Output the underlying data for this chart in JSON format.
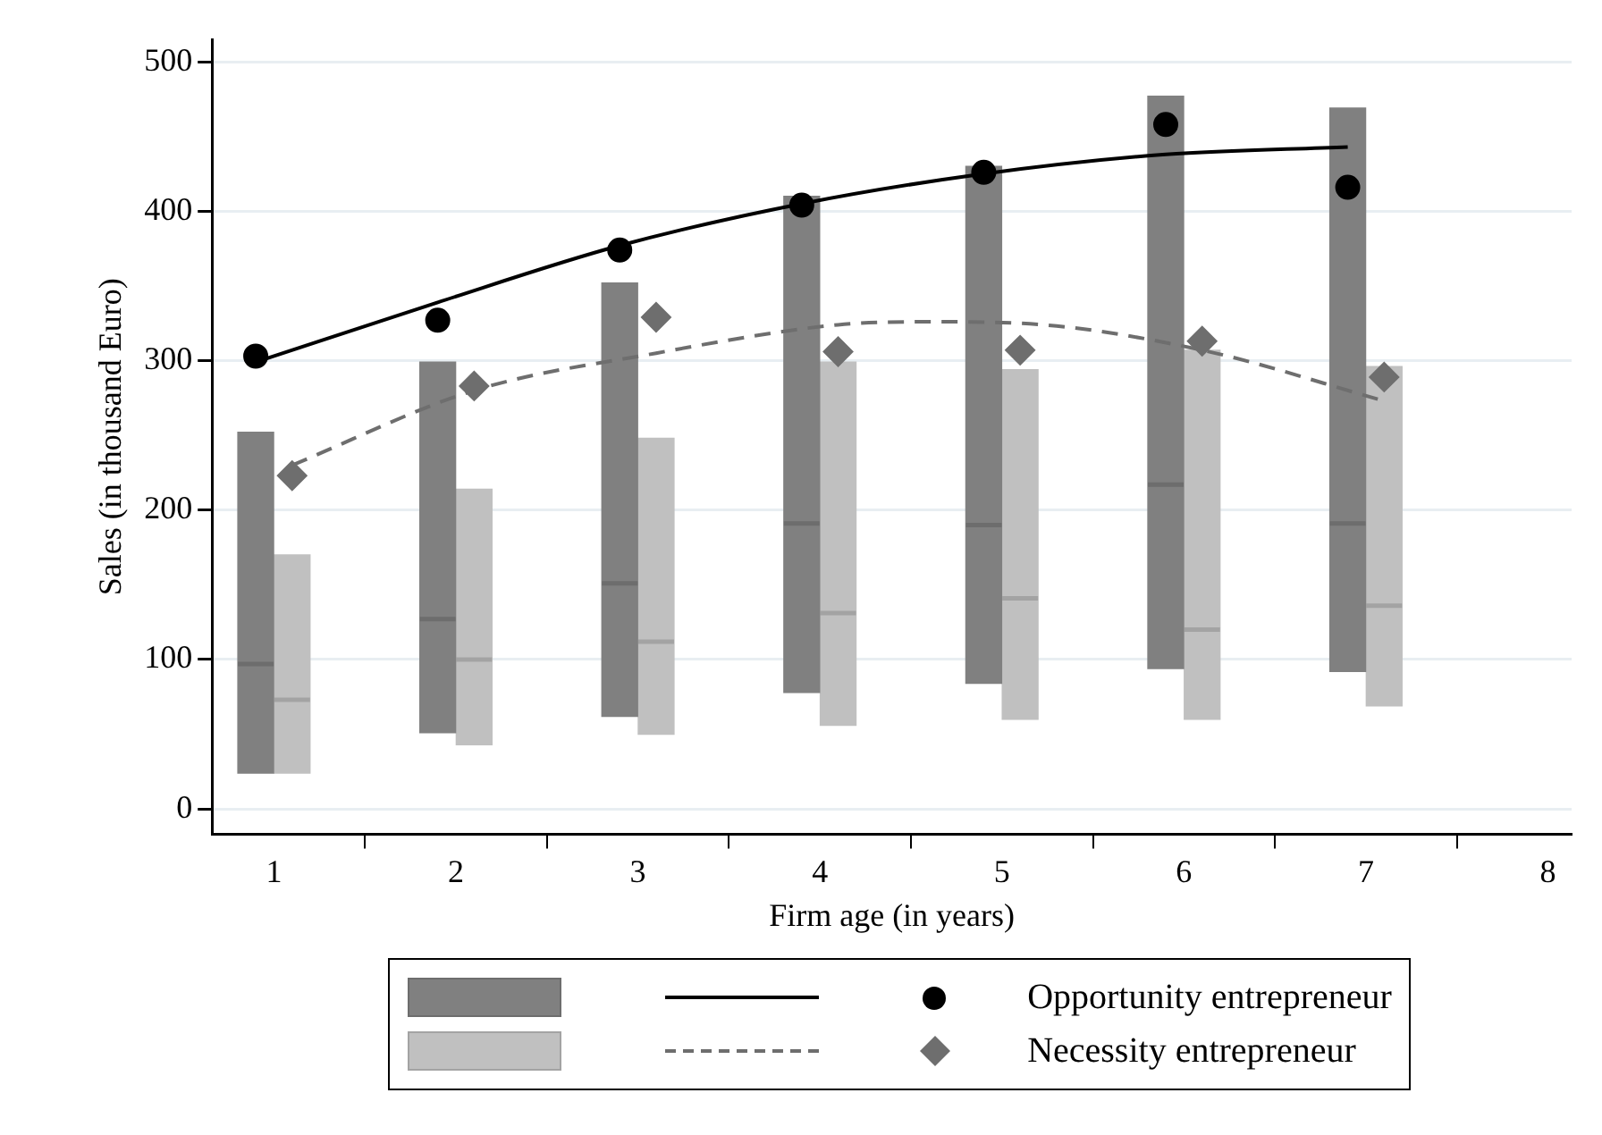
{
  "chart_data": {
    "type": "box",
    "xlabel": "Firm age (in years)",
    "ylabel": "Sales (in thousand Euro)",
    "xlim": [
      0.66,
      8.13
    ],
    "xticks": [
      1,
      2,
      3,
      4,
      5,
      6,
      7,
      8
    ],
    "ylim": [
      -17,
      515
    ],
    "yticks": [
      0,
      100,
      200,
      300,
      400,
      500
    ],
    "grid": "y",
    "legend": "bottom",
    "series": [
      {
        "color": "#808080",
        "x": [
          0.9,
          1.9,
          2.9,
          3.9,
          4.9,
          5.9,
          6.9
        ],
        "boxes": [
          {
            "low": 24,
            "q1": 24,
            "median": 97,
            "q3": 252,
            "high": 252
          },
          {
            "low": 51,
            "q1": 51,
            "median": 127,
            "q3": 299,
            "high": 299
          },
          {
            "low": 62,
            "q1": 62,
            "median": 151,
            "q3": 352,
            "high": 352
          },
          {
            "low": 78,
            "q1": 78,
            "median": 191,
            "q3": 410,
            "high": 410
          },
          {
            "low": 84,
            "q1": 84,
            "median": 190,
            "q3": 430,
            "high": 430
          },
          {
            "low": 94,
            "q1": 94,
            "median": 217,
            "q3": 477,
            "high": 477
          },
          {
            "low": 92,
            "q1": 92,
            "median": 191,
            "q3": 469,
            "high": 469
          }
        ]
      },
      {
        "color": "#c0c0c0",
        "x": [
          1.1,
          2.1,
          3.1,
          4.1,
          5.1,
          6.1,
          7.1
        ],
        "boxes": [
          {
            "low": 24,
            "q1": 24,
            "median": 73,
            "q3": 170,
            "high": 170
          },
          {
            "low": 43,
            "q1": 43,
            "median": 100,
            "q3": 214,
            "high": 214
          },
          {
            "low": 50,
            "q1": 50,
            "median": 112,
            "q3": 248,
            "high": 248
          },
          {
            "low": 56,
            "q1": 56,
            "median": 131,
            "q3": 299,
            "high": 299
          },
          {
            "low": 60,
            "q1": 60,
            "median": 141,
            "q3": 294,
            "high": 294
          },
          {
            "low": 60,
            "q1": 60,
            "median": 120,
            "q3": 307,
            "high": 307
          },
          {
            "low": 69,
            "q1": 69,
            "median": 136,
            "q3": 296,
            "high": 296
          }
        ]
      },
      {
        "type": "line",
        "color": "#000000",
        "line_style": "solid",
        "marker": "none",
        "x": [
          0.9,
          1.9,
          2.9,
          3.9,
          4.9,
          5.9,
          6.9
        ],
        "values": [
          299,
          339,
          377,
          405,
          425,
          438,
          443
        ]
      },
      {
        "type": "line",
        "color": "#6e6e6e",
        "line_style": "dashed",
        "marker": "none",
        "x": [
          1.1,
          2.1,
          3.1,
          4.1,
          4.6,
          5.1,
          6.1,
          7.1
        ],
        "values": [
          230,
          280,
          305,
          324,
          326,
          325,
          307,
          273
        ]
      },
      {
        "type": "scatter",
        "name": "Opportunity entrepreneur",
        "color": "#000000",
        "marker": "circle",
        "x": [
          0.9,
          1.9,
          2.9,
          3.9,
          4.9,
          5.9,
          6.9
        ],
        "values": [
          303,
          327,
          374,
          404,
          426,
          458,
          416
        ]
      },
      {
        "type": "scatter",
        "name": "Necessity entrepreneur",
        "color": "#6e6e6e",
        "marker": "diamond",
        "x": [
          1.1,
          2.1,
          3.1,
          4.1,
          5.1,
          6.1,
          7.1
        ],
        "values": [
          223,
          283,
          329,
          306,
          307,
          313,
          289
        ]
      }
    ]
  }
}
